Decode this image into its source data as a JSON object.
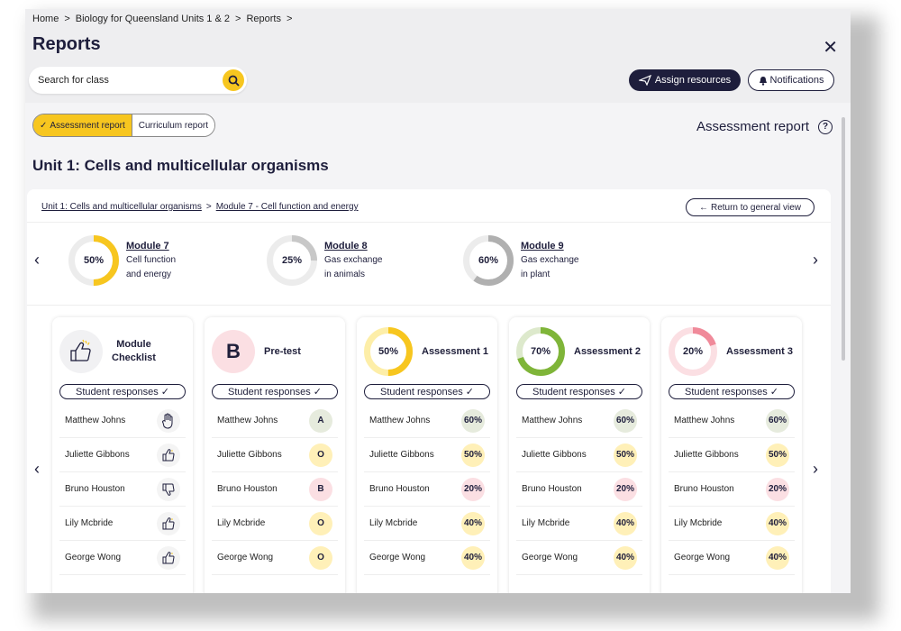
{
  "breadcrumb": [
    "Home",
    "Biology for Queensland Units 1 & 2",
    "Reports"
  ],
  "page_title": "Reports",
  "search": {
    "placeholder": "Search for class"
  },
  "header_buttons": {
    "assign": "Assign resources",
    "notifications": "Notifications"
  },
  "toggle": {
    "assessment": "Assessment report",
    "curriculum": "Curriculum report"
  },
  "report_heading": "Assessment report",
  "unit_title": "Unit 1: Cells and multicellular organisms",
  "panel": {
    "crumb_unit": "Unit 1: Cells and multicellular organisms",
    "crumb_module": "Module 7 - Cell function and energy",
    "return_label": "Return to general view"
  },
  "modules": [
    {
      "name": "Module 7",
      "line1": "Cell function",
      "line2": "and energy",
      "percent": "50%",
      "progress": 0.5,
      "color": "#f7c61f"
    },
    {
      "name": "Module 8",
      "line1": "Gas exchange",
      "line2": "in animals",
      "percent": "25%",
      "progress": 0.25,
      "color": "#c8c8c8"
    },
    {
      "name": "Module 9",
      "line1": "Gas exchange",
      "line2": "in plant",
      "percent": "60%",
      "progress": 0.6,
      "color": "#b0b0b0"
    }
  ],
  "response_label": "Student responses",
  "students": [
    "Matthew Johns",
    "Juliette Gibbons",
    "Bruno Houston",
    "Lily Mcbride",
    "George Wong"
  ],
  "cards": [
    {
      "title1": "Module",
      "title2": "Checklist",
      "kind": "checklist",
      "values": [
        "hand",
        "up",
        "down",
        "up",
        "up"
      ]
    },
    {
      "title1": "Pre-test",
      "title2": "",
      "kind": "grade",
      "badge": "B",
      "values": [
        "A",
        "O",
        "B",
        "O",
        "O"
      ]
    },
    {
      "title1": "Assessment 1",
      "title2": "",
      "kind": "pct",
      "percent": "50%",
      "progress": 0.5,
      "ring_color": "#f7c61f",
      "ring_bg": "#fdeea8",
      "values": [
        "60%",
        "50%",
        "20%",
        "40%",
        "40%"
      ]
    },
    {
      "title1": "Assessment 2",
      "title2": "",
      "kind": "pct",
      "percent": "70%",
      "progress": 0.7,
      "ring_color": "#7fb539",
      "ring_bg": "#dde9cc",
      "values": [
        "60%",
        "50%",
        "20%",
        "40%",
        "40%"
      ]
    },
    {
      "title1": "Assessment 3",
      "title2": "",
      "kind": "pct",
      "percent": "20%",
      "progress": 0.2,
      "ring_color": "#f08a9a",
      "ring_bg": "#fbdfe3",
      "values": [
        "60%",
        "50%",
        "20%",
        "40%",
        "40%"
      ]
    }
  ]
}
